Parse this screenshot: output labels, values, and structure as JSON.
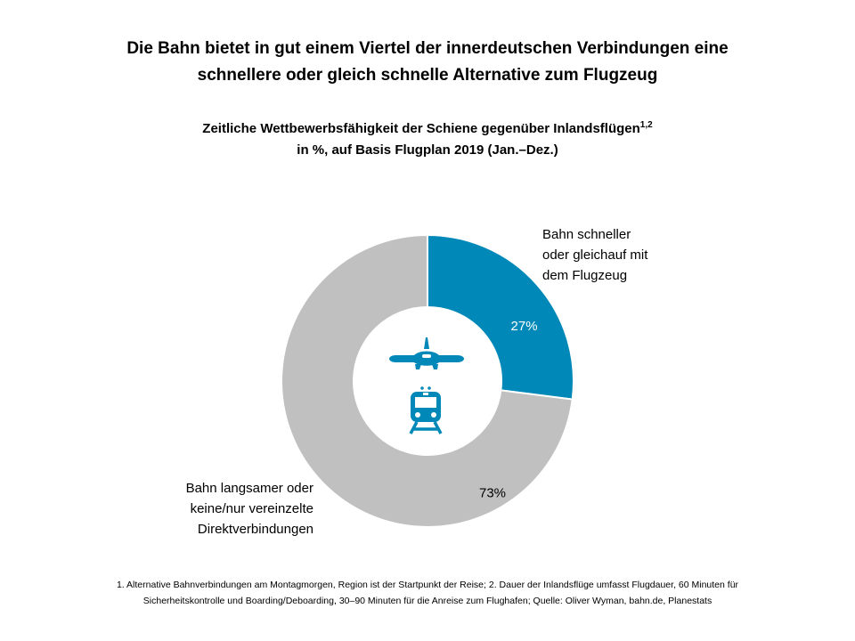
{
  "header": {
    "title_line1": "Die Bahn bietet in gut einem Viertel der innerdeutschen  Verbindungen  eine",
    "title_line2": "schnellere oder gleich schnelle Alternative zum Flugzeug",
    "subtitle_line1": "Zeitliche Wettbewerbsfähigkeit  der Schiene gegenüber Inlandsflügen",
    "subtitle_sup": "1,2",
    "subtitle_line2": "in %, auf Basis Flugplan  2019 (Jan.–Dez.)"
  },
  "chart_data": {
    "type": "pie",
    "donut": true,
    "slices": [
      {
        "label_lines": [
          "Bahn schneller",
          "oder gleichauf mit",
          "dem Flugzeug"
        ],
        "value": 27,
        "value_label": "27%",
        "color": "#0089B8",
        "value_label_color": "#ffffff"
      },
      {
        "label_lines": [
          "Bahn langsamer oder",
          "keine/nur vereinzelte",
          "Direktverbindungen"
        ],
        "value": 73,
        "value_label": "73%",
        "color": "#C0C0C0",
        "value_label_color": "#000000"
      }
    ],
    "center_icons": [
      "airplane-icon",
      "train-icon"
    ],
    "icon_color": "#0089B8"
  },
  "footnote": {
    "line1": "1. Alternative Bahnverbindungen am Montagmorgen,  Region ist der Startpunkt der Reise; 2. Dauer der Inlandsflüge umfasst Flugdauer, 60 Minuten für",
    "line2": "Sicherheitskontrolle und Boarding/Deboarding, 30–90 Minuten für die Anreise zum Flughafen; Quelle: Oliver Wyman, bahn.de, Planestats"
  }
}
